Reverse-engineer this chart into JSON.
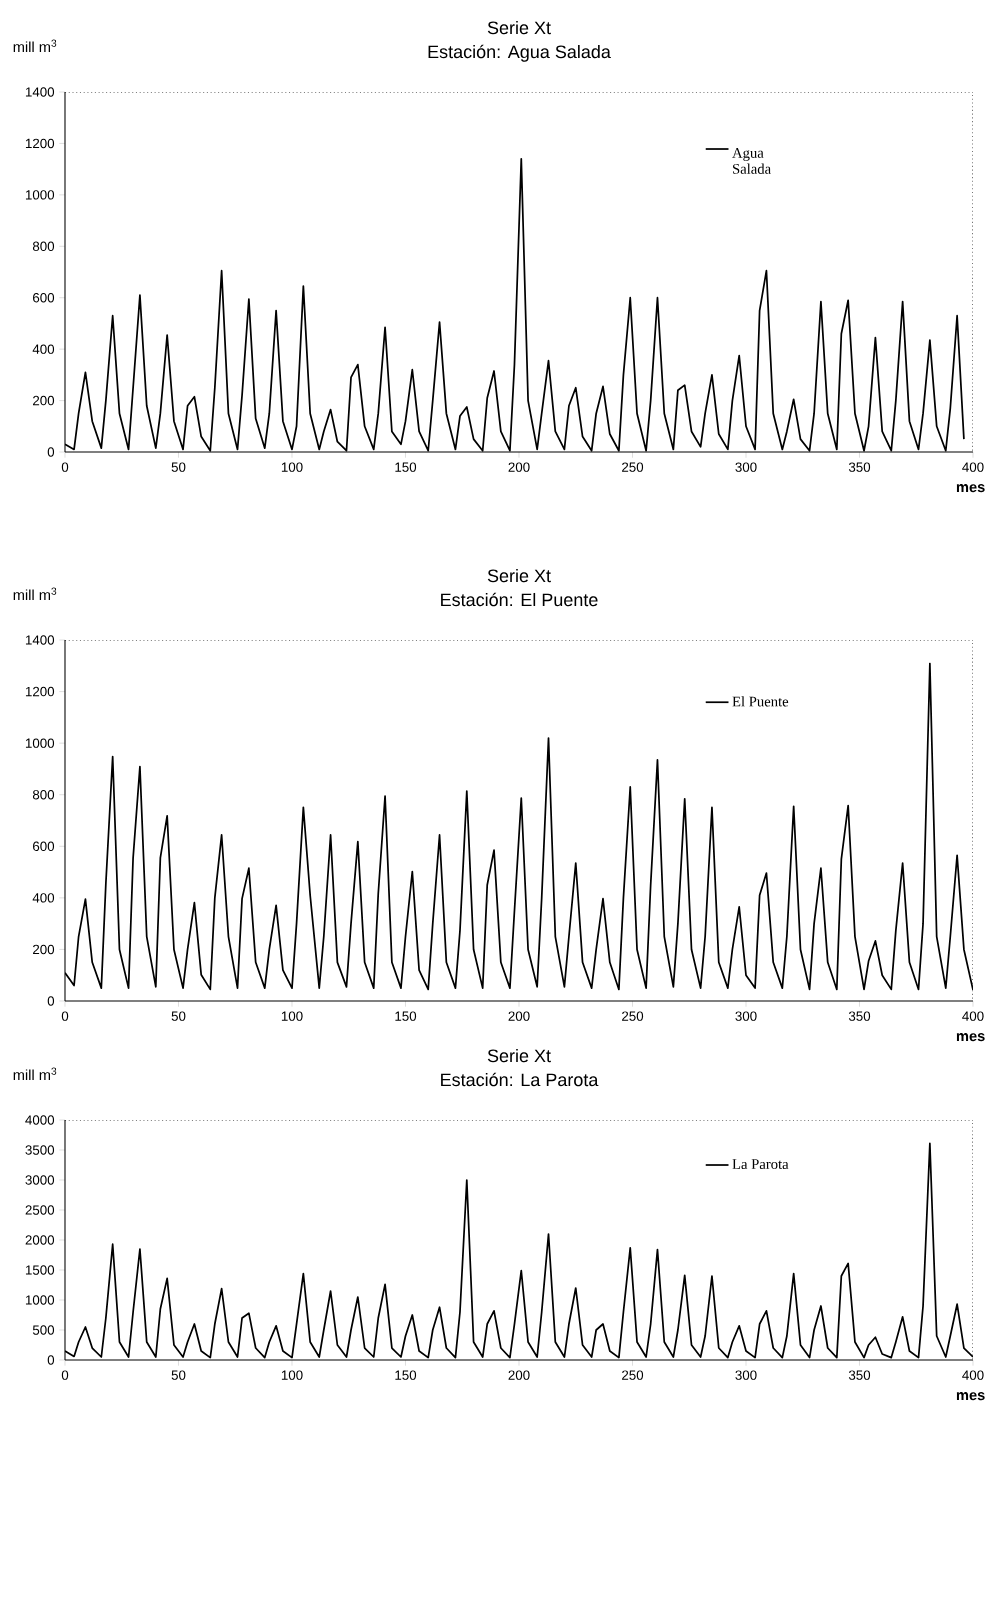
{
  "chart_data": [
    {
      "type": "line",
      "title": "Serie Xt",
      "subtitle": "Estación: Agua Salada",
      "ylabel": "mill m$^{3}$",
      "xlabel": "mes",
      "legend": "top right",
      "marker": "none",
      "line_style": "solid",
      "xlim": [
        0,
        400
      ],
      "ylim": [
        0,
        1400
      ],
      "xticks": [
        0,
        50,
        100,
        150,
        200,
        250,
        300,
        350,
        400
      ],
      "yticks": [
        0,
        200,
        400,
        600,
        800,
        1000,
        1200,
        1400
      ],
      "x": [
        0,
        4,
        6,
        9,
        12,
        16,
        18,
        21,
        24,
        28,
        30,
        33,
        36,
        40,
        42,
        45,
        48,
        52,
        54,
        57,
        60,
        64,
        66,
        69,
        72,
        76,
        78,
        81,
        84,
        88,
        90,
        93,
        96,
        100,
        102,
        105,
        108,
        112,
        114,
        117,
        120,
        124,
        126,
        129,
        132,
        136,
        138,
        141,
        144,
        148,
        150,
        153,
        156,
        160,
        162,
        165,
        168,
        172,
        174,
        177,
        180,
        184,
        186,
        189,
        192,
        196,
        198,
        201,
        204,
        208,
        210,
        213,
        216,
        220,
        222,
        225,
        228,
        232,
        234,
        237,
        240,
        244,
        246,
        249,
        252,
        256,
        258,
        261,
        264,
        268,
        270,
        273,
        276,
        280,
        282,
        285,
        288,
        292,
        294,
        297,
        300,
        304,
        306,
        309,
        312,
        316,
        318,
        321,
        324,
        328,
        330,
        333,
        336,
        340,
        342,
        345,
        348,
        352,
        354,
        357,
        360,
        364,
        366,
        369,
        372,
        376,
        378,
        381,
        384,
        388,
        390,
        393,
        396
      ],
      "series": [
        {
          "name": "Agua Salada",
          "color": "#000000",
          "values": [
            30,
            10,
            150,
            310,
            120,
            15,
            200,
            530,
            150,
            10,
            250,
            610,
            180,
            15,
            150,
            455,
            120,
            10,
            180,
            215,
            60,
            5,
            250,
            705,
            150,
            10,
            220,
            595,
            130,
            15,
            150,
            550,
            120,
            10,
            100,
            645,
            150,
            10,
            80,
            165,
            40,
            5,
            290,
            340,
            100,
            10,
            150,
            485,
            80,
            30,
            120,
            320,
            80,
            5,
            200,
            505,
            150,
            10,
            140,
            175,
            50,
            5,
            210,
            315,
            80,
            5,
            340,
            1140,
            200,
            10,
            150,
            355,
            80,
            10,
            180,
            250,
            60,
            5,
            150,
            255,
            70,
            5,
            300,
            600,
            150,
            5,
            200,
            600,
            150,
            10,
            240,
            260,
            80,
            20,
            150,
            300,
            70,
            10,
            200,
            375,
            100,
            10,
            550,
            705,
            150,
            10,
            80,
            205,
            50,
            5,
            150,
            585,
            150,
            10,
            460,
            590,
            150,
            5,
            100,
            445,
            80,
            5,
            200,
            585,
            120,
            10,
            150,
            435,
            100,
            5,
            170,
            530,
            50
          ]
        }
      ]
    },
    {
      "type": "line",
      "title": "Serie Xt",
      "subtitle": "Estación: El Puente",
      "ylabel": "mill m$^{3}$",
      "xlabel": "mes",
      "legend": "top right",
      "marker": "none",
      "line_style": "solid",
      "xlim": [
        0,
        400
      ],
      "ylim": [
        0,
        1400
      ],
      "xticks": [
        0,
        50,
        100,
        150,
        200,
        250,
        300,
        350,
        400
      ],
      "yticks": [
        0,
        200,
        400,
        600,
        800,
        1000,
        1200,
        1400
      ],
      "x": [
        0,
        4,
        6,
        9,
        12,
        16,
        18,
        21,
        24,
        28,
        30,
        33,
        36,
        40,
        42,
        45,
        48,
        52,
        54,
        57,
        60,
        64,
        66,
        69,
        72,
        76,
        78,
        81,
        84,
        88,
        90,
        93,
        96,
        100,
        102,
        105,
        108,
        112,
        114,
        117,
        120,
        124,
        126,
        129,
        132,
        136,
        138,
        141,
        144,
        148,
        150,
        153,
        156,
        160,
        162,
        165,
        168,
        172,
        174,
        177,
        180,
        184,
        186,
        189,
        192,
        196,
        198,
        201,
        204,
        208,
        210,
        213,
        216,
        220,
        222,
        225,
        228,
        232,
        234,
        237,
        240,
        244,
        246,
        249,
        252,
        256,
        258,
        261,
        264,
        268,
        270,
        273,
        276,
        280,
        282,
        285,
        288,
        292,
        294,
        297,
        300,
        304,
        306,
        309,
        312,
        316,
        318,
        321,
        324,
        328,
        330,
        333,
        336,
        340,
        342,
        345,
        348,
        352,
        354,
        357,
        360,
        364,
        366,
        369,
        372,
        376,
        378,
        381,
        384,
        388,
        390,
        393,
        396,
        400
      ],
      "series": [
        {
          "name": "El Puente",
          "color": "#000000",
          "values": [
            110,
            60,
            250,
            395,
            150,
            50,
            456,
            948,
            200,
            50,
            555,
            909,
            250,
            55,
            555,
            718,
            200,
            50,
            200,
            382,
            102,
            45,
            400,
            644,
            250,
            50,
            397,
            515,
            150,
            50,
            200,
            371,
            120,
            50,
            300,
            751,
            410,
            50,
            250,
            644,
            150,
            55,
            300,
            618,
            150,
            50,
            417,
            795,
            150,
            50,
            250,
            502,
            120,
            45,
            300,
            644,
            150,
            50,
            273,
            814,
            200,
            50,
            450,
            585,
            150,
            50,
            350,
            787,
            200,
            55,
            400,
            1020,
            250,
            55,
            250,
            535,
            150,
            50,
            200,
            397,
            150,
            45,
            400,
            830,
            200,
            50,
            450,
            935,
            250,
            55,
            300,
            784,
            200,
            50,
            250,
            751,
            150,
            50,
            200,
            365,
            100,
            50,
            410,
            496,
            150,
            50,
            250,
            755,
            200,
            45,
            300,
            515,
            150,
            45,
            550,
            758,
            250,
            45,
            155,
            233,
            100,
            45,
            273,
            535,
            150,
            45,
            300,
            1309,
            250,
            50,
            250,
            565,
            200,
            43
          ]
        }
      ]
    },
    {
      "type": "line",
      "title": "Serie Xt",
      "subtitle": "Estación: La Parota",
      "ylabel": "mill m$^{3}$",
      "xlabel": "mes",
      "legend": "top right",
      "marker": "none",
      "line_style": "solid",
      "xlim": [
        0,
        400
      ],
      "ylim": [
        0,
        4000
      ],
      "xticks": [
        0,
        50,
        100,
        150,
        200,
        250,
        300,
        350,
        400
      ],
      "yticks": [
        0,
        500,
        1000,
        1500,
        2000,
        2500,
        3000,
        3500,
        4000
      ],
      "x": [
        0,
        4,
        6,
        9,
        12,
        16,
        18,
        21,
        24,
        28,
        30,
        33,
        36,
        40,
        42,
        45,
        48,
        52,
        54,
        57,
        60,
        64,
        66,
        69,
        72,
        76,
        78,
        81,
        84,
        88,
        90,
        93,
        96,
        100,
        102,
        105,
        108,
        112,
        114,
        117,
        120,
        124,
        126,
        129,
        132,
        136,
        138,
        141,
        144,
        148,
        150,
        153,
        156,
        160,
        162,
        165,
        168,
        172,
        174,
        177,
        180,
        184,
        186,
        189,
        192,
        196,
        198,
        201,
        204,
        208,
        210,
        213,
        216,
        220,
        222,
        225,
        228,
        232,
        234,
        237,
        240,
        244,
        246,
        249,
        252,
        256,
        258,
        261,
        264,
        268,
        270,
        273,
        276,
        280,
        282,
        285,
        288,
        292,
        294,
        297,
        300,
        304,
        306,
        309,
        312,
        316,
        318,
        321,
        324,
        328,
        330,
        333,
        336,
        340,
        342,
        345,
        348,
        352,
        354,
        357,
        360,
        364,
        366,
        369,
        372,
        376,
        378,
        381,
        384,
        388,
        390,
        393,
        396,
        400
      ],
      "series": [
        {
          "name": "La Parota",
          "color": "#000000",
          "values": [
            150,
            60,
            300,
            550,
            200,
            50,
            700,
            1930,
            300,
            50,
            800,
            1850,
            300,
            50,
            850,
            1360,
            250,
            50,
            300,
            600,
            150,
            40,
            600,
            1190,
            300,
            50,
            700,
            780,
            200,
            40,
            300,
            570,
            150,
            40,
            600,
            1440,
            300,
            50,
            500,
            1150,
            250,
            50,
            500,
            1050,
            200,
            50,
            700,
            1260,
            200,
            50,
            400,
            750,
            150,
            40,
            500,
            880,
            200,
            40,
            800,
            3000,
            300,
            50,
            600,
            820,
            200,
            40,
            600,
            1490,
            300,
            50,
            800,
            2100,
            300,
            50,
            600,
            1200,
            250,
            50,
            500,
            600,
            150,
            40,
            800,
            1870,
            300,
            50,
            600,
            1840,
            300,
            50,
            500,
            1410,
            250,
            50,
            400,
            1400,
            200,
            40,
            300,
            570,
            150,
            40,
            600,
            820,
            200,
            40,
            400,
            1440,
            250,
            40,
            500,
            900,
            200,
            40,
            1400,
            1610,
            300,
            40,
            250,
            380,
            100,
            40,
            300,
            720,
            150,
            40,
            900,
            3610,
            400,
            50,
            400,
            930,
            200,
            50
          ]
        }
      ]
    }
  ]
}
